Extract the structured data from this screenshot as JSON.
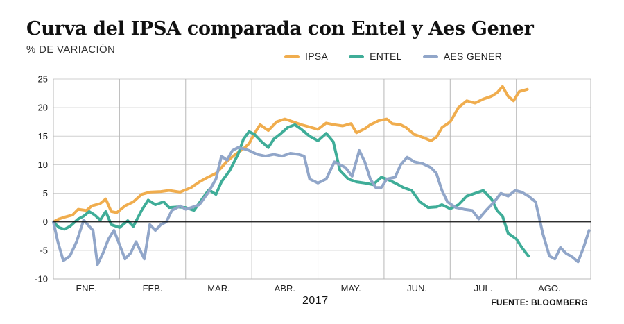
{
  "title": "Curva del IPSA comparada con Entel y Aes Gener",
  "subtitle": "% DE VARIACIÓN",
  "year_label": "2017",
  "source": "FUENTE: BLOOMBERG",
  "colors": {
    "IPSA": "#f0ad4e",
    "ENTEL": "#3fad98",
    "AES GENER": "#91a6c9"
  },
  "chart_data": {
    "type": "line",
    "title": "Curva del IPSA comparada con Entel y Aes Gener",
    "ylabel": "% DE VARIACIÓN",
    "xlabel": "2017",
    "ylim": [
      -10,
      25
    ],
    "yticks": [
      -10,
      -5,
      0,
      5,
      10,
      15,
      20,
      25
    ],
    "grid": true,
    "legend": "top",
    "months": [
      "ENE.",
      "FEB.",
      "MAR.",
      "ABR.",
      "MAY.",
      "JUN.",
      "JUL.",
      "AGO."
    ],
    "series": [
      {
        "name": "IPSA",
        "points": [
          [
            0,
            0
          ],
          [
            0.1,
            0.5
          ],
          [
            0.2,
            0.8
          ],
          [
            0.35,
            1.2
          ],
          [
            0.45,
            2.2
          ],
          [
            0.6,
            2.0
          ],
          [
            0.7,
            2.8
          ],
          [
            0.85,
            3.2
          ],
          [
            0.95,
            4.0
          ],
          [
            1.05,
            1.8
          ],
          [
            1.15,
            1.6
          ],
          [
            1.3,
            2.8
          ],
          [
            1.45,
            3.5
          ],
          [
            1.6,
            4.8
          ],
          [
            1.75,
            5.2
          ],
          [
            1.95,
            5.3
          ],
          [
            2.1,
            5.5
          ],
          [
            2.3,
            5.2
          ],
          [
            2.5,
            6.0
          ],
          [
            2.65,
            7.0
          ],
          [
            2.8,
            7.8
          ],
          [
            2.95,
            8.5
          ],
          [
            3.05,
            9.5
          ],
          [
            3.15,
            10.6
          ],
          [
            3.3,
            11.8
          ],
          [
            3.45,
            12.8
          ],
          [
            3.55,
            13.7
          ],
          [
            3.65,
            15.5
          ],
          [
            3.75,
            17.0
          ],
          [
            3.9,
            16.0
          ],
          [
            4.05,
            17.5
          ],
          [
            4.2,
            18.0
          ],
          [
            4.35,
            17.5
          ],
          [
            4.5,
            17.0
          ],
          [
            4.65,
            16.6
          ],
          [
            4.8,
            16.2
          ],
          [
            4.95,
            17.3
          ],
          [
            5.1,
            17.0
          ],
          [
            5.25,
            16.8
          ],
          [
            5.4,
            17.2
          ],
          [
            5.5,
            15.6
          ],
          [
            5.65,
            16.3
          ],
          [
            5.75,
            17.0
          ],
          [
            5.9,
            17.7
          ],
          [
            6.05,
            18.0
          ],
          [
            6.15,
            17.2
          ],
          [
            6.3,
            17.0
          ],
          [
            6.4,
            16.5
          ],
          [
            6.55,
            15.3
          ],
          [
            6.7,
            14.8
          ],
          [
            6.85,
            14.2
          ],
          [
            6.95,
            14.8
          ],
          [
            7.05,
            16.5
          ],
          [
            7.2,
            17.5
          ],
          [
            7.35,
            20.0
          ],
          [
            7.5,
            21.2
          ],
          [
            7.65,
            20.8
          ],
          [
            7.8,
            21.5
          ],
          [
            7.95,
            22.0
          ],
          [
            8.05,
            22.6
          ],
          [
            8.15,
            23.7
          ],
          [
            8.25,
            22.0
          ],
          [
            8.35,
            21.2
          ],
          [
            8.45,
            22.8
          ],
          [
            8.6,
            23.2
          ]
        ]
      },
      {
        "name": "ENTEL",
        "points": [
          [
            0,
            0
          ],
          [
            0.1,
            -1.0
          ],
          [
            0.2,
            -1.3
          ],
          [
            0.3,
            -0.8
          ],
          [
            0.45,
            0.5
          ],
          [
            0.55,
            1.0
          ],
          [
            0.65,
            1.8
          ],
          [
            0.75,
            1.2
          ],
          [
            0.85,
            0.3
          ],
          [
            0.95,
            1.8
          ],
          [
            1.05,
            -0.5
          ],
          [
            1.2,
            -1.0
          ],
          [
            1.35,
            0.2
          ],
          [
            1.45,
            -0.8
          ],
          [
            1.6,
            2.0
          ],
          [
            1.72,
            3.8
          ],
          [
            1.85,
            3.0
          ],
          [
            2.0,
            3.5
          ],
          [
            2.1,
            2.5
          ],
          [
            2.25,
            2.6
          ],
          [
            2.4,
            2.5
          ],
          [
            2.55,
            2.0
          ],
          [
            2.7,
            4.0
          ],
          [
            2.82,
            5.6
          ],
          [
            2.95,
            4.8
          ],
          [
            3.05,
            7.0
          ],
          [
            3.2,
            9.0
          ],
          [
            3.35,
            11.8
          ],
          [
            3.45,
            14.5
          ],
          [
            3.55,
            15.8
          ],
          [
            3.65,
            15.3
          ],
          [
            3.78,
            14.0
          ],
          [
            3.9,
            13.0
          ],
          [
            4.0,
            14.5
          ],
          [
            4.12,
            15.4
          ],
          [
            4.25,
            16.5
          ],
          [
            4.38,
            17.0
          ],
          [
            4.5,
            16.2
          ],
          [
            4.65,
            15.0
          ],
          [
            4.8,
            14.2
          ],
          [
            4.95,
            15.5
          ],
          [
            5.08,
            14.0
          ],
          [
            5.2,
            9.0
          ],
          [
            5.35,
            7.5
          ],
          [
            5.5,
            7.0
          ],
          [
            5.65,
            6.8
          ],
          [
            5.8,
            6.5
          ],
          [
            5.95,
            7.8
          ],
          [
            6.05,
            7.5
          ],
          [
            6.2,
            6.8
          ],
          [
            6.35,
            6.0
          ],
          [
            6.5,
            5.5
          ],
          [
            6.65,
            3.5
          ],
          [
            6.8,
            2.5
          ],
          [
            6.95,
            2.6
          ],
          [
            7.05,
            3.0
          ],
          [
            7.2,
            2.3
          ],
          [
            7.35,
            3.0
          ],
          [
            7.5,
            4.5
          ],
          [
            7.65,
            5.0
          ],
          [
            7.8,
            5.5
          ],
          [
            7.95,
            4.0
          ],
          [
            8.05,
            2.0
          ],
          [
            8.15,
            1.0
          ],
          [
            8.25,
            -2.0
          ],
          [
            8.4,
            -3.0
          ],
          [
            8.5,
            -4.5
          ],
          [
            8.62,
            -6.0
          ]
        ]
      },
      {
        "name": "AES GENER",
        "points": [
          [
            0,
            0
          ],
          [
            0.08,
            -3.5
          ],
          [
            0.18,
            -6.8
          ],
          [
            0.3,
            -6.0
          ],
          [
            0.42,
            -3.5
          ],
          [
            0.55,
            0.3
          ],
          [
            0.65,
            -0.8
          ],
          [
            0.72,
            -1.5
          ],
          [
            0.8,
            -7.5
          ],
          [
            0.9,
            -5.5
          ],
          [
            1.0,
            -3.0
          ],
          [
            1.1,
            -1.5
          ],
          [
            1.2,
            -4.0
          ],
          [
            1.3,
            -6.5
          ],
          [
            1.4,
            -5.5
          ],
          [
            1.5,
            -3.5
          ],
          [
            1.65,
            -6.5
          ],
          [
            1.75,
            -0.5
          ],
          [
            1.85,
            -1.5
          ],
          [
            1.95,
            -0.5
          ],
          [
            2.05,
            0.0
          ],
          [
            2.15,
            2.0
          ],
          [
            2.3,
            2.8
          ],
          [
            2.4,
            2.2
          ],
          [
            2.5,
            2.5
          ],
          [
            2.65,
            3.0
          ],
          [
            2.8,
            5.0
          ],
          [
            2.95,
            7.5
          ],
          [
            3.05,
            11.5
          ],
          [
            3.15,
            10.8
          ],
          [
            3.25,
            12.5
          ],
          [
            3.35,
            13.0
          ],
          [
            3.45,
            12.8
          ],
          [
            3.55,
            12.5
          ],
          [
            3.7,
            11.8
          ],
          [
            3.85,
            11.5
          ],
          [
            4.0,
            11.8
          ],
          [
            4.15,
            11.5
          ],
          [
            4.3,
            12.0
          ],
          [
            4.45,
            11.8
          ],
          [
            4.55,
            11.5
          ],
          [
            4.65,
            7.5
          ],
          [
            4.8,
            6.8
          ],
          [
            4.95,
            7.5
          ],
          [
            5.1,
            10.5
          ],
          [
            5.2,
            10.0
          ],
          [
            5.3,
            9.5
          ],
          [
            5.42,
            8.0
          ],
          [
            5.55,
            12.5
          ],
          [
            5.65,
            10.5
          ],
          [
            5.75,
            7.5
          ],
          [
            5.85,
            6.0
          ],
          [
            5.95,
            6.0
          ],
          [
            6.05,
            7.5
          ],
          [
            6.2,
            7.8
          ],
          [
            6.3,
            10.0
          ],
          [
            6.42,
            11.3
          ],
          [
            6.55,
            10.5
          ],
          [
            6.7,
            10.2
          ],
          [
            6.85,
            9.5
          ],
          [
            6.95,
            8.5
          ],
          [
            7.05,
            5.5
          ],
          [
            7.15,
            3.5
          ],
          [
            7.3,
            2.5
          ],
          [
            7.45,
            2.2
          ],
          [
            7.6,
            2.0
          ],
          [
            7.72,
            0.5
          ],
          [
            7.85,
            2.0
          ],
          [
            8.0,
            3.5
          ],
          [
            8.12,
            5.0
          ],
          [
            8.25,
            4.5
          ],
          [
            8.38,
            5.5
          ],
          [
            8.5,
            5.2
          ],
          [
            8.62,
            4.5
          ],
          [
            8.75,
            3.5
          ],
          [
            8.88,
            -2.0
          ],
          [
            9.0,
            -6.0
          ],
          [
            9.1,
            -6.5
          ],
          [
            9.2,
            -4.5
          ],
          [
            9.3,
            -5.5
          ],
          [
            9.42,
            -6.2
          ],
          [
            9.52,
            -7.0
          ],
          [
            9.62,
            -4.5
          ],
          [
            9.72,
            -1.5
          ]
        ]
      }
    ]
  }
}
